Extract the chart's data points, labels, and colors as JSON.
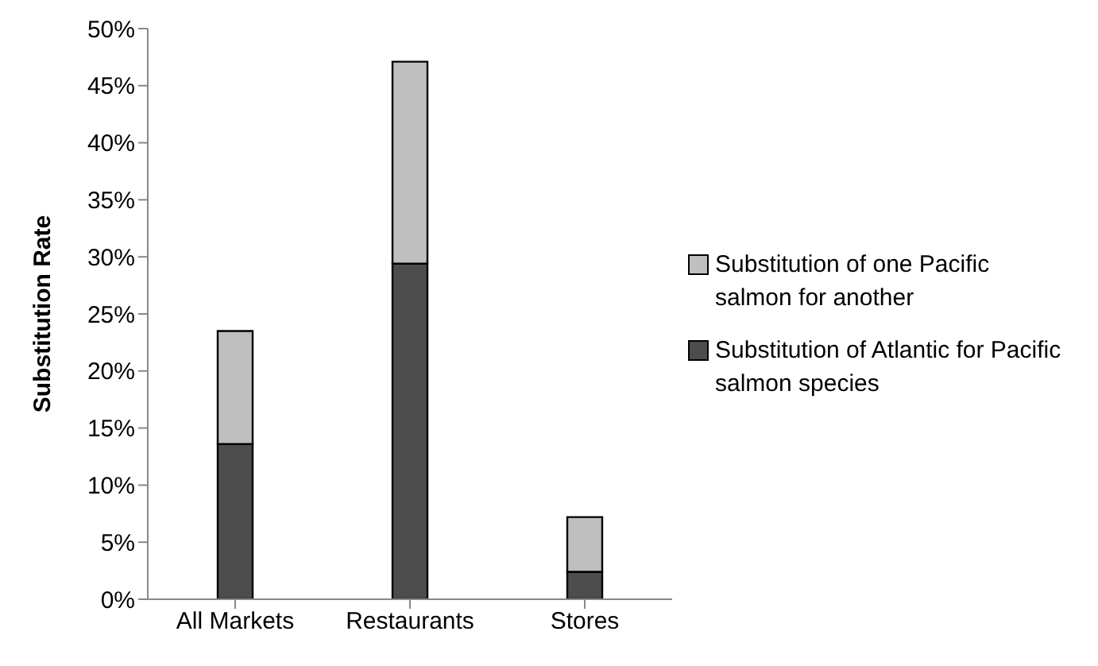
{
  "chart_data": {
    "type": "bar",
    "stacked": true,
    "ylabel": "Substitution Rate",
    "categories": [
      "All Markets",
      "Restaurants",
      "Stores"
    ],
    "series": [
      {
        "name": "Substitution of Atlantic for Pacific salmon species",
        "color": "#4d4d4d",
        "values": [
          13.6,
          29.4,
          2.4
        ]
      },
      {
        "name": "Substitution of one Pacific salmon for another",
        "color": "#bfbfbf",
        "values": [
          9.9,
          17.7,
          4.8
        ]
      }
    ],
    "ylim": [
      0,
      50
    ],
    "yticks": [
      {
        "value": 0,
        "label": "0%"
      },
      {
        "value": 5,
        "label": "5%"
      },
      {
        "value": 10,
        "label": "10%"
      },
      {
        "value": 15,
        "label": "15%"
      },
      {
        "value": 20,
        "label": "20%"
      },
      {
        "value": 25,
        "label": "25%"
      },
      {
        "value": 30,
        "label": "30%"
      },
      {
        "value": 35,
        "label": "35%"
      },
      {
        "value": 40,
        "label": "40%"
      },
      {
        "value": 45,
        "label": "45%"
      },
      {
        "value": 50,
        "label": "50%"
      }
    ],
    "grid": false,
    "legend": "right"
  }
}
